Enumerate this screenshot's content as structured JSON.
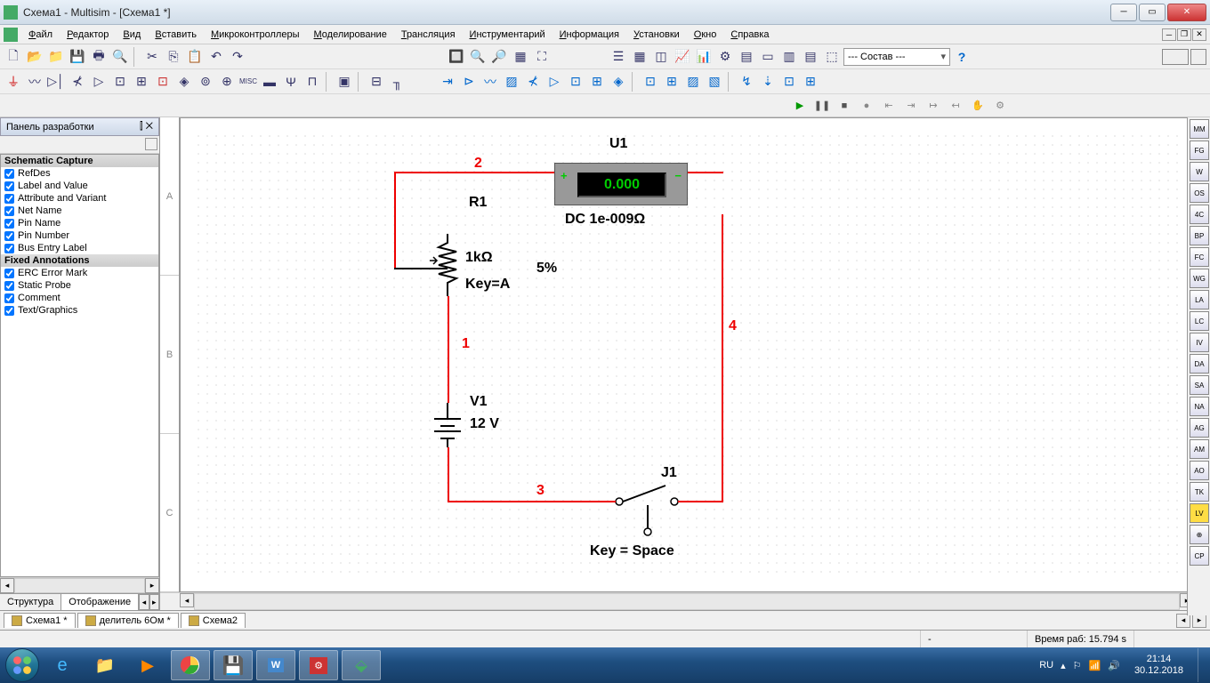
{
  "window": {
    "title": "Схема1 - Multisim - [Схема1 *]"
  },
  "menu": [
    "Файл",
    "Редактор",
    "Вид",
    "Вставить",
    "Микроконтроллеры",
    "Моделирование",
    "Трансляция",
    "Инструментарий",
    "Информация",
    "Установки",
    "Окно",
    "Справка"
  ],
  "combo_label": "--- Состав ---",
  "side_panel": {
    "title": "Панель разработки",
    "group1_header": "Schematic Capture",
    "group1_items": [
      "RefDes",
      "Label and Value",
      "Attribute and Variant",
      "Net Name",
      "Pin Name",
      "Pin Number",
      "Bus Entry Label"
    ],
    "group2_header": "Fixed Annotations",
    "group2_items": [
      "ERC Error Mark",
      "Static Probe",
      "Comment",
      "Text/Graphics"
    ],
    "tabs": [
      "Структура",
      "Отображение"
    ]
  },
  "ruler_rows": [
    "A",
    "B",
    "C"
  ],
  "schematic": {
    "u1_ref": "U1",
    "u1_reading": "0.000",
    "u1_mode": "DC  1e-009Ω",
    "r1_ref": "R1",
    "r1_value": "1kΩ",
    "r1_key": "Key=A",
    "r1_tol": "5%",
    "v1_ref": "V1",
    "v1_value": "12 V",
    "j1_ref": "J1",
    "j1_key": "Key = Space",
    "net1": "1",
    "net2": "2",
    "net3": "3",
    "net4": "4",
    "wire_color": "#ee0000",
    "label_color": "#ee0000",
    "text_color": "#000000"
  },
  "doc_tabs": [
    "Схема1 *",
    "делитель 6Ом *",
    "Схема2"
  ],
  "status": {
    "runtime_label": "Время раб:",
    "runtime_value": "15.794 s",
    "dash": "-"
  },
  "tray": {
    "lang": "RU",
    "time": "21:14",
    "date": "30.12.2018"
  }
}
